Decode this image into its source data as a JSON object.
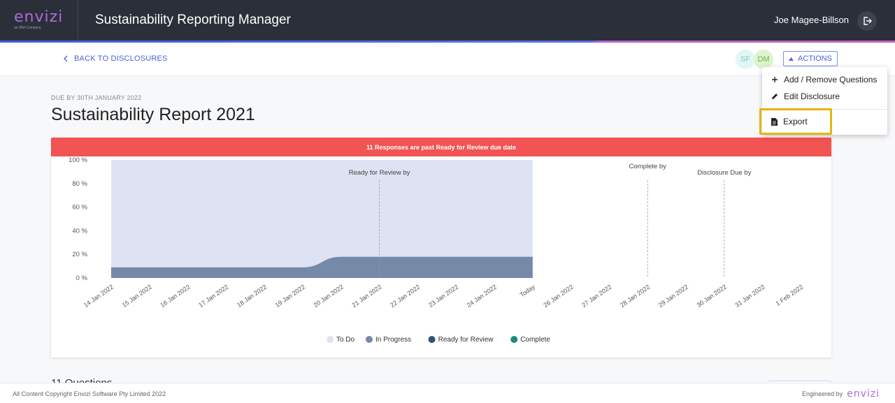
{
  "header": {
    "logo_text": "envizi",
    "logo_sub": "an IBM Company",
    "title": "Sustainability Reporting Manager",
    "user_name": "Joe Magee-Billson",
    "logout_icon": "logout-icon"
  },
  "toolbar": {
    "back_label": "BACK TO DISCLOSURES",
    "avatars": [
      "SF",
      "DM"
    ],
    "actions_label": "ACTIONS"
  },
  "menu": {
    "items": [
      {
        "icon": "plus-icon",
        "label": "Add / Remove Questions"
      },
      {
        "icon": "pencil-icon",
        "label": "Edit Disclosure"
      },
      {
        "icon": "document-icon",
        "label": "Export"
      }
    ],
    "highlight_color": "#e8b310"
  },
  "report": {
    "due": "DUE BY 30TH JANUARY 2022",
    "title": "Sustainability Report 2021"
  },
  "banner": {
    "text": "11 Responses are past Ready for Review due date",
    "color": "#f25353"
  },
  "chart_data": {
    "type": "area",
    "categories": [
      "14 Jan 2022",
      "15 Jan 2022",
      "16 Jan 2022",
      "17 Jan 2022",
      "18 Jan 2022",
      "19 Jan 2022",
      "20 Jan 2022",
      "21 Jan 2022",
      "22 Jan 2022",
      "23 Jan 2022",
      "24 Jan 2022",
      "Today",
      "26 Jan 2022",
      "27 Jan 2022",
      "28 Jan 2022",
      "29 Jan 2022",
      "30 Jan 2022",
      "31 Jan 2022",
      "1 Feb 2022"
    ],
    "series": [
      {
        "name": "To Do",
        "color": "#dfe2f3",
        "values": [
          91,
          91,
          91,
          91,
          91,
          91,
          82,
          82,
          82,
          82,
          82,
          82,
          null,
          null,
          null,
          null,
          null,
          null,
          null
        ]
      },
      {
        "name": "In Progress",
        "color": "#7589a9",
        "values": [
          9,
          9,
          9,
          9,
          9,
          9,
          18,
          18,
          18,
          18,
          18,
          18,
          null,
          null,
          null,
          null,
          null,
          null,
          null
        ]
      },
      {
        "name": "Ready for Review",
        "color": "#2d5378",
        "values": [
          0,
          0,
          0,
          0,
          0,
          0,
          0,
          0,
          0,
          0,
          0,
          0,
          null,
          null,
          null,
          null,
          null,
          null,
          null
        ]
      },
      {
        "name": "Complete",
        "color": "#1a8a7a",
        "values": [
          0,
          0,
          0,
          0,
          0,
          0,
          0,
          0,
          0,
          0,
          0,
          0,
          null,
          null,
          null,
          null,
          null,
          null,
          null
        ]
      }
    ],
    "y_ticks": [
      "100 %",
      "80 %",
      "60 %",
      "40 %",
      "20 %",
      "0 %"
    ],
    "ylim": [
      0,
      100
    ],
    "markers": [
      {
        "label": "Ready for Review by",
        "category": "21 Jan 2022"
      },
      {
        "label": "Complete by",
        "category": "28 Jan 2022"
      },
      {
        "label": "Disclosure Due by",
        "category": "30 Jan 2022"
      }
    ],
    "legend_position": "bottom"
  },
  "questions": {
    "heading": "11 Questions"
  },
  "footer": {
    "copyright": "All Content Copyright Envizi Software Pty Limited 2022",
    "engineered_by": "Engineered by",
    "logo": "envizi"
  }
}
